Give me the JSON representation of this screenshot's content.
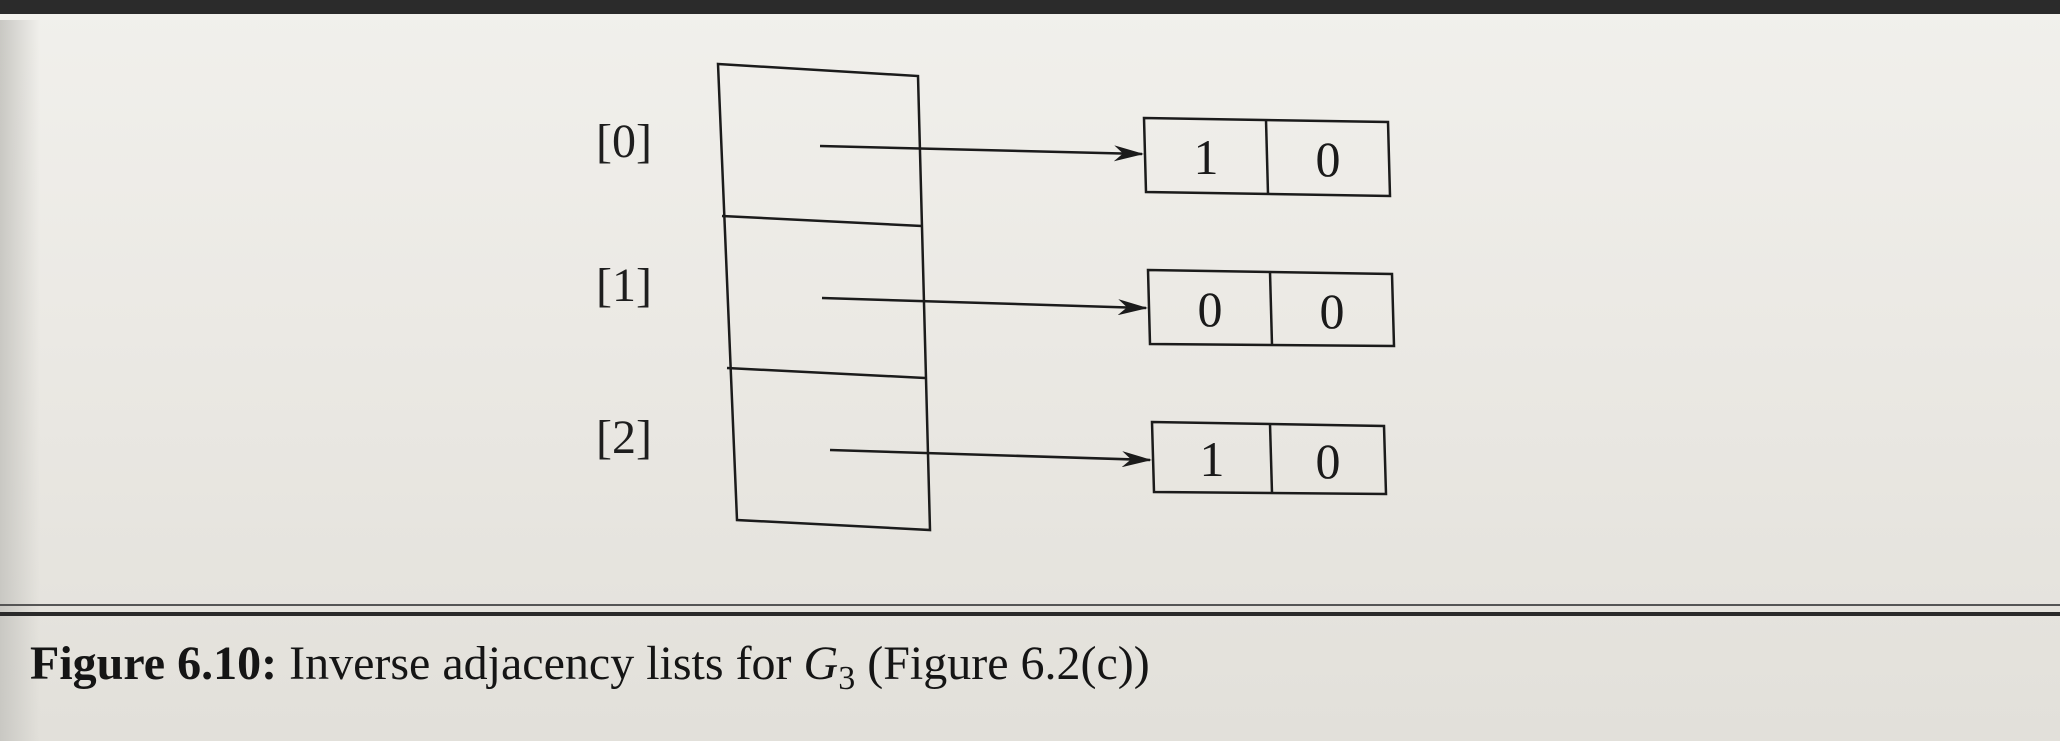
{
  "diagram": {
    "rows": [
      {
        "index": "[0]",
        "node": [
          "1",
          "0"
        ]
      },
      {
        "index": "[1]",
        "node": [
          "0",
          "0"
        ]
      },
      {
        "index": "[2]",
        "node": [
          "1",
          "0"
        ]
      }
    ]
  },
  "caption": {
    "label": "Figure 6.10:",
    "text": "Inverse adjacency lists for",
    "graph": "G",
    "graph_sub": "3",
    "ref": "(Figure 6.2(c))"
  },
  "colors": {
    "ink": "#1b1b1b",
    "paper": "#ece9e3"
  }
}
